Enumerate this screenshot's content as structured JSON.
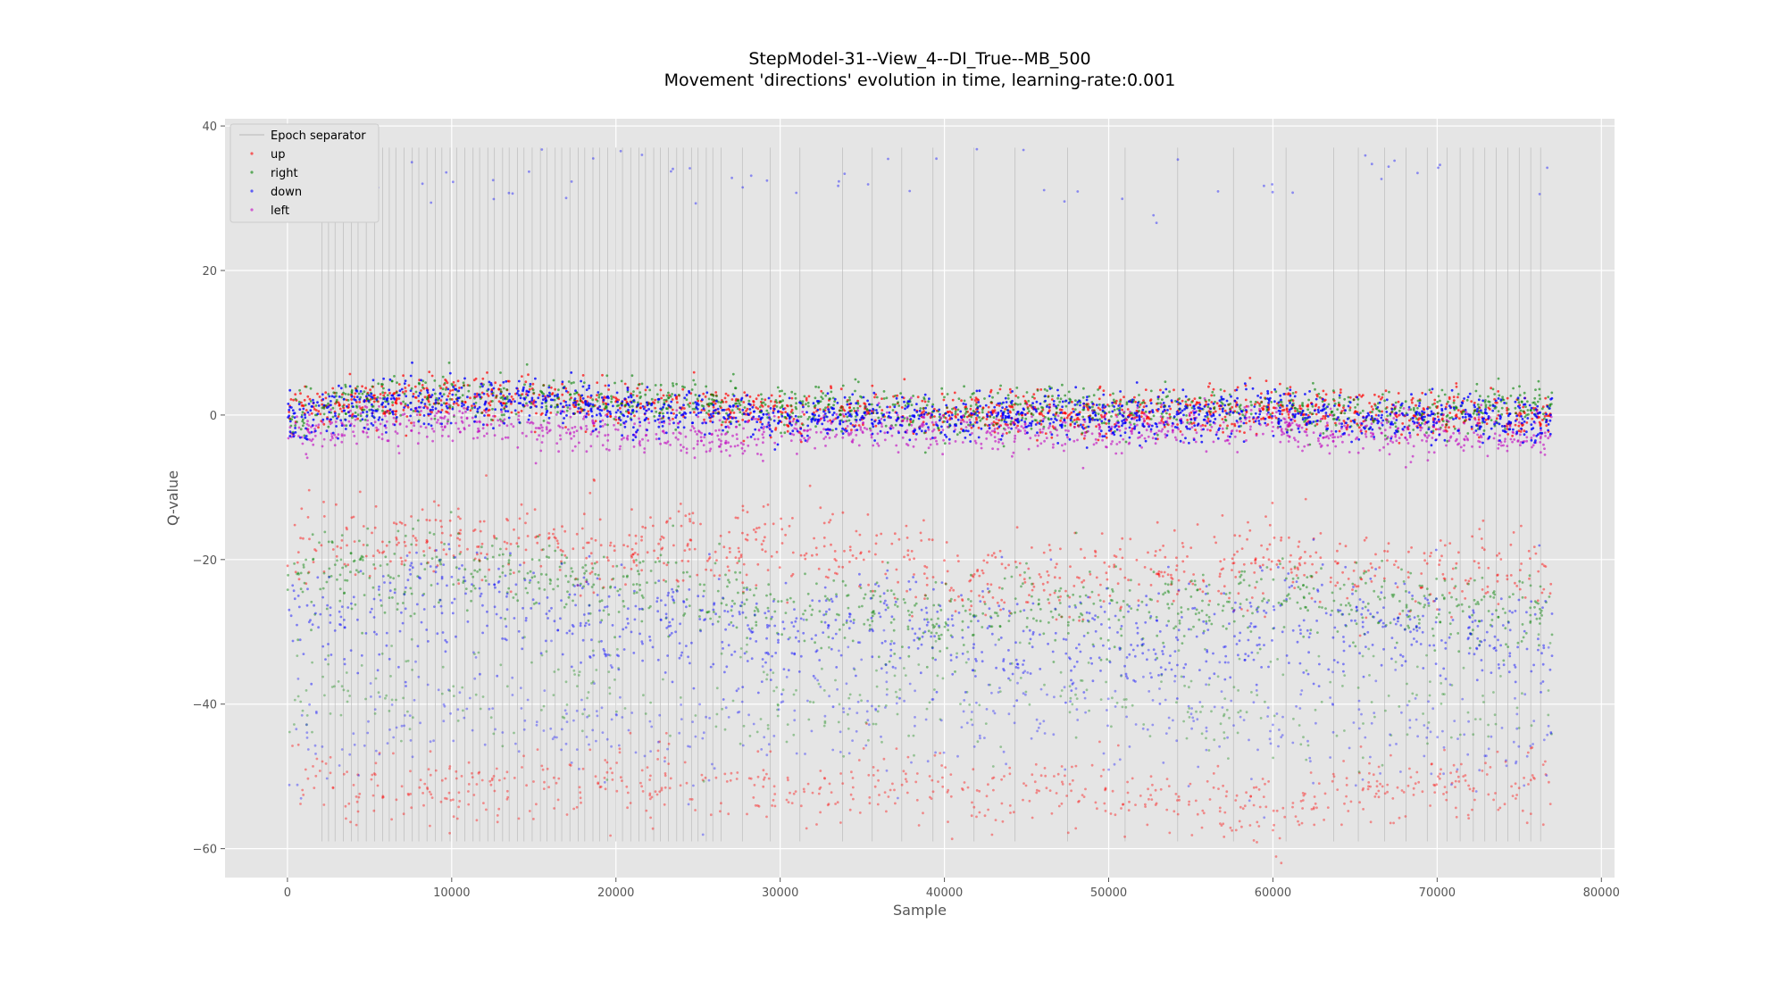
{
  "chart_data": {
    "type": "scatter",
    "title": "StepModel-31--View_4--DI_True--MB_500",
    "subtitle": "Movement 'directions' evolution in time, learning-rate:0.001",
    "xlabel": "Sample",
    "ylabel": "Q-value",
    "xlim": [
      -3800,
      80800
    ],
    "ylim": [
      -64,
      41
    ],
    "xticks": [
      0,
      10000,
      20000,
      30000,
      40000,
      50000,
      60000,
      70000,
      80000
    ],
    "xtick_labels": [
      "0",
      "10000",
      "20000",
      "30000",
      "40000",
      "50000",
      "60000",
      "70000",
      "80000"
    ],
    "yticks": [
      -60,
      -40,
      -20,
      0,
      20,
      40
    ],
    "ytick_labels": [
      "−60",
      "−40",
      "−20",
      "0",
      "20",
      "40"
    ],
    "grid": true,
    "legend_position": "top-left",
    "legend": [
      "Epoch separator",
      "up",
      "right",
      "down",
      "left"
    ],
    "epoch_separator": {
      "name": "Epoch separator",
      "color": "#b8b8b8",
      "y_range": [
        -59,
        37
      ],
      "x": [
        2100,
        2500,
        2900,
        3400,
        3900,
        4300,
        4800,
        5300,
        5800,
        6200,
        6600,
        7100,
        7600,
        8000,
        8500,
        9000,
        9400,
        9900,
        10300,
        10800,
        11300,
        11700,
        12200,
        12600,
        13100,
        13500,
        14000,
        14400,
        14900,
        15400,
        15800,
        16300,
        16700,
        17200,
        17700,
        18100,
        18600,
        19000,
        19500,
        20000,
        20400,
        20900,
        21400,
        21800,
        22300,
        22700,
        23200,
        23700,
        24100,
        24600,
        25000,
        25500,
        25900,
        26400,
        27700,
        29400,
        31200,
        33800,
        35600,
        37400,
        39300,
        41800,
        44300,
        47500,
        51000,
        54200,
        57600,
        60800,
        63700,
        65200,
        66800,
        68100,
        69400,
        70600,
        71400,
        72200,
        72900,
        73600,
        74300,
        75000,
        75700,
        76300
      ]
    },
    "series": [
      {
        "name": "up",
        "color": "#ff0000",
        "bands": [
          {
            "x": [
              0,
              5000,
              10000,
              15000,
              20000,
              25000,
              30000,
              35000,
              40000,
              45000,
              50000,
              55000,
              60000,
              65000,
              70000,
              77000
            ],
            "center": [
              0.5,
              2,
              2.5,
              2.5,
              1.5,
              1.5,
              0.5,
              1,
              0,
              0.5,
              0,
              0.5,
              1,
              0,
              0,
              0
            ],
            "spread": 1.5,
            "density": 0.9,
            "alpha": 0.7
          },
          {
            "x": [
              0,
              5000,
              10000,
              15000,
              20000,
              25000,
              30000,
              35000,
              40000,
              45000,
              50000,
              55000,
              60000,
              65000,
              70000,
              77000
            ],
            "center": [
              -17.5,
              -17,
              -18,
              -17,
              -18,
              -18,
              -18,
              -20,
              -22,
              -23,
              -22,
              -22,
              -20,
              -22,
              -22,
              -21
            ],
            "spread": 3,
            "density": 0.55,
            "alpha": 0.45
          },
          {
            "x": [
              0,
              5000,
              10000,
              15000,
              20000,
              25000,
              30000,
              35000,
              40000,
              45000,
              50000,
              55000,
              60000,
              65000,
              70000,
              77000
            ],
            "center": [
              -50,
              -51,
              -52,
              -50,
              -51,
              -51,
              -52,
              -52,
              -52,
              -52,
              -53,
              -53,
              -55,
              -52,
              -52,
              -51
            ],
            "spread": 2.5,
            "density": 0.45,
            "alpha": 0.4
          }
        ]
      },
      {
        "name": "right",
        "color": "#008000",
        "bands": [
          {
            "x": [
              0,
              5000,
              10000,
              15000,
              20000,
              25000,
              30000,
              35000,
              40000,
              45000,
              50000,
              55000,
              60000,
              65000,
              70000,
              77000
            ],
            "center": [
              0,
              2,
              3,
              2.5,
              2,
              1.5,
              1,
              1,
              0.5,
              1,
              0.5,
              1,
              1,
              0,
              0.5,
              1.5
            ],
            "spread": 1.5,
            "density": 0.8,
            "alpha": 0.6
          },
          {
            "x": [
              0,
              5000,
              10000,
              15000,
              20000,
              25000,
              30000,
              35000,
              40000,
              45000,
              50000,
              55000,
              60000,
              65000,
              70000,
              77000
            ],
            "center": [
              -23,
              -22,
              -21,
              -22,
              -24,
              -25,
              -27,
              -27,
              -29,
              -26,
              -27,
              -26,
              -25,
              -26,
              -26,
              -27
            ],
            "spread": 3,
            "density": 0.6,
            "alpha": 0.45
          },
          {
            "x": [
              0,
              77000
            ],
            "center": [
              -38,
              -40
            ],
            "spread": 4,
            "density": 0.25,
            "alpha": 0.35
          }
        ]
      },
      {
        "name": "down",
        "color": "#0000ff",
        "bands": [
          {
            "x": [
              0,
              5000,
              10000,
              15000,
              20000,
              25000,
              30000,
              35000,
              40000,
              45000,
              50000,
              55000,
              60000,
              65000,
              70000,
              77000
            ],
            "center": [
              -0.5,
              1.5,
              2,
              2,
              0.5,
              0.5,
              -0.5,
              0,
              -1,
              0,
              0,
              0,
              1,
              -0.5,
              -0.5,
              -0.5
            ],
            "spread": 1.6,
            "density": 1.0,
            "alpha": 0.8
          },
          {
            "x": [
              0,
              5000,
              10000,
              15000,
              20000,
              25000,
              30000,
              35000,
              40000,
              45000,
              50000,
              55000,
              60000,
              65000,
              70000,
              77000
            ],
            "center": [
              -28,
              -28,
              -25,
              -27,
              -29,
              -30,
              -31,
              -29,
              -31,
              -32,
              -31,
              -31,
              -29,
              -29,
              -30,
              -32
            ],
            "spread": 4,
            "density": 0.65,
            "alpha": 0.45
          },
          {
            "x": [
              0,
              5000,
              10000,
              15000,
              20000,
              25000,
              30000,
              35000,
              40000,
              45000,
              50000,
              55000,
              60000,
              65000,
              70000,
              77000
            ],
            "center": [
              -44,
              -43,
              -40,
              -42,
              -44,
              -45,
              -42,
              -41,
              -43,
              -41,
              -42,
              -41,
              -42,
              -44,
              -44,
              -45
            ],
            "spread": 4,
            "density": 0.3,
            "alpha": 0.35
          },
          {
            "x": [
              0,
              77000
            ],
            "center": [
              32,
              33
            ],
            "spread": 2.5,
            "density": 0.04,
            "alpha": 0.4
          }
        ]
      },
      {
        "name": "left",
        "color": "#bf00bf",
        "bands": [
          {
            "x": [
              0,
              5000,
              10000,
              15000,
              20000,
              25000,
              30000,
              35000,
              40000,
              45000,
              50000,
              55000,
              60000,
              65000,
              70000,
              77000
            ],
            "center": [
              -3,
              -1.5,
              -1,
              -2,
              -2.5,
              -3,
              -2.5,
              -1.5,
              -2,
              -2.5,
              -2,
              -1.5,
              -1.5,
              -3,
              -2.5,
              -3
            ],
            "spread": 1.5,
            "density": 0.75,
            "alpha": 0.6
          }
        ]
      }
    ]
  }
}
